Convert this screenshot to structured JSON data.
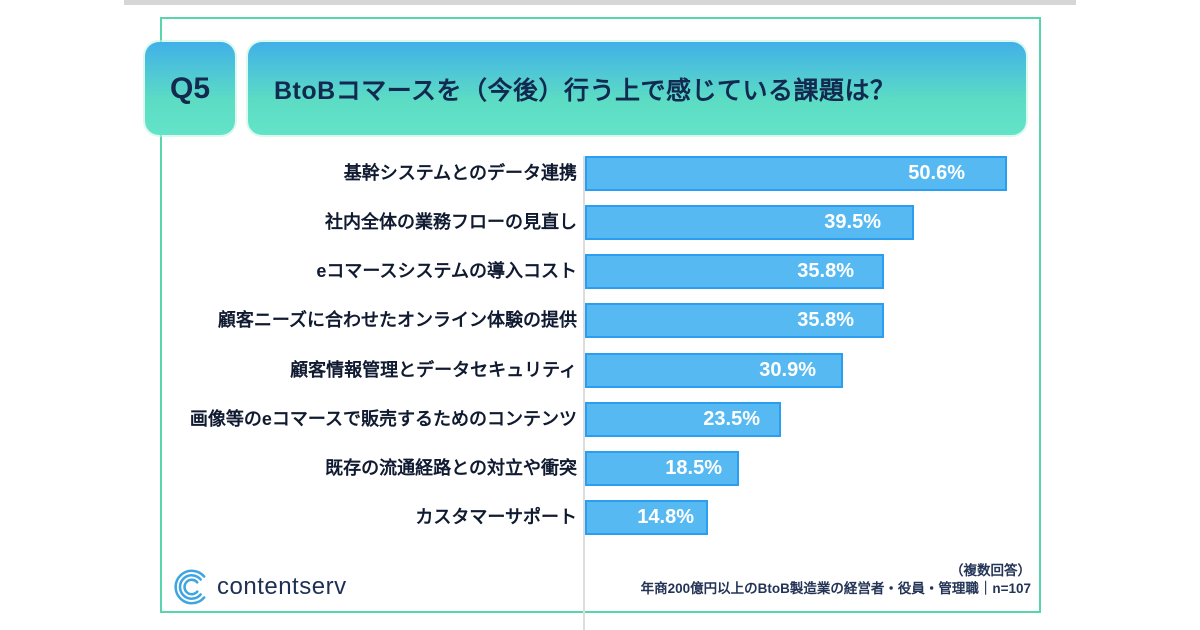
{
  "header": {
    "badge": "Q5",
    "question": "BtoBコマースを（今後）行う上で感じている課題は？"
  },
  "chart_data": {
    "type": "bar",
    "orientation": "horizontal",
    "title": "BtoBコマースを（今後）行う上で感じている課題は？",
    "categories": [
      "基幹システムとのデータ連携",
      "社内全体の業務フローの見直し",
      "eコマースシステムの導入コスト",
      "顧客ニーズに合わせたオンライン体験の提供",
      "顧客情報管理とデータセキュリティ",
      "画像等のeコマースで販売するためのコンテンツ",
      "既存の流通経路との対立や衝突",
      "カスタマーサポート"
    ],
    "values": [
      50.6,
      39.5,
      35.8,
      35.8,
      30.9,
      23.5,
      18.5,
      14.8
    ],
    "value_labels": [
      "50.6%",
      "39.5%",
      "35.8%",
      "35.8%",
      "30.9%",
      "23.5%",
      "18.5%",
      "14.8%"
    ],
    "unit": "%",
    "xlim": [
      0,
      54
    ],
    "grid": false,
    "legend": false,
    "bar_color": "#57b9f2",
    "bar_border_color": "#2c9ef0",
    "value_label_color": "#ffffff"
  },
  "footer": {
    "logo_text": "contentserv",
    "note_line1": "（複数回答）",
    "note_line2": "年商200億円以上のBtoB製造業の経営者・役員・管理職｜n=107"
  },
  "accent_colors": {
    "header_gradient_top": "#41b0e8",
    "header_gradient_bottom": "#63e3c7",
    "card_border": "#58d5ac",
    "logo_blue": "#3fa5e2",
    "text_dark_navy": "#122a50"
  }
}
